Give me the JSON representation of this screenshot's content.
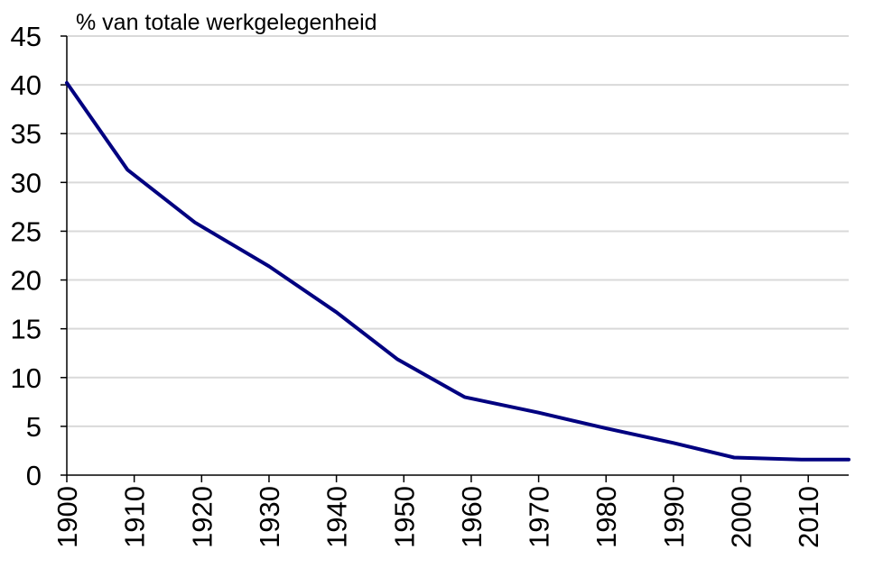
{
  "chart_data": {
    "type": "line",
    "title": "% van totale werkgelegenheid",
    "xlabel": "",
    "ylabel": "",
    "x": [
      1900,
      1909,
      1919,
      1930,
      1940,
      1949,
      1959,
      1970,
      1980,
      1990,
      1999,
      2009,
      2016
    ],
    "series": [
      {
        "values": [
          40.2,
          31.3,
          25.9,
          21.4,
          16.7,
          11.9,
          8.0,
          6.4,
          4.8,
          3.3,
          1.8,
          1.6,
          1.6
        ],
        "color": "#000080"
      }
    ],
    "xlim": [
      1900,
      2016
    ],
    "ylim": [
      0,
      45
    ],
    "xticks": [
      "1900",
      "1910",
      "1920",
      "1930",
      "1940",
      "1950",
      "1960",
      "1970",
      "1980",
      "1990",
      "2000",
      "2010"
    ],
    "yticks": [
      "0",
      "5",
      "10",
      "15",
      "20",
      "25",
      "30",
      "35",
      "40",
      "45"
    ],
    "grid": true,
    "legend": "none"
  }
}
